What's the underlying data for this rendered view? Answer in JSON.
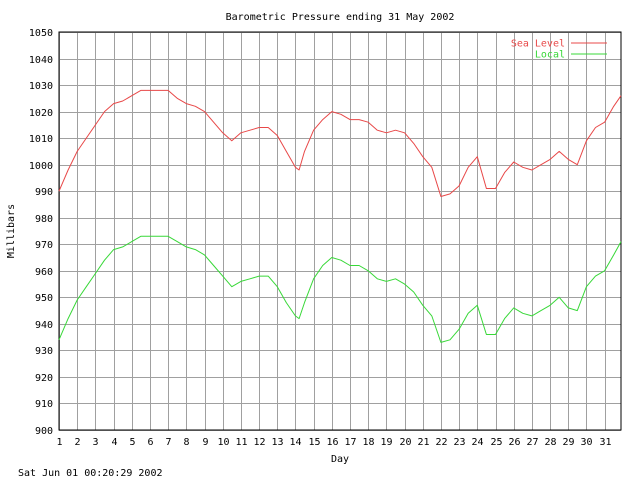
{
  "chart_data": {
    "type": "line",
    "title": "Barometric Pressure ending 31 May 2002",
    "xlabel": "Day",
    "ylabel": "Millibars",
    "footer": "Sat Jun 01 00:20:29 2002",
    "xlim": [
      1,
      31.9
    ],
    "ylim": [
      900,
      1050
    ],
    "y_ticks": [
      900,
      910,
      920,
      930,
      940,
      950,
      960,
      970,
      980,
      990,
      1000,
      1010,
      1020,
      1030,
      1040,
      1050
    ],
    "x_ticks": [
      1,
      2,
      3,
      4,
      5,
      6,
      7,
      8,
      9,
      10,
      11,
      12,
      13,
      14,
      15,
      16,
      17,
      18,
      19,
      20,
      21,
      22,
      23,
      24,
      25,
      26,
      27,
      28,
      29,
      30,
      31
    ],
    "grid": true,
    "legend_position": "top-right",
    "series": [
      {
        "name": "Sea Level",
        "color": "#e84848",
        "x": [
          1,
          1.5,
          2,
          2.5,
          3,
          3.5,
          4,
          4.5,
          5,
          5.5,
          6,
          6.5,
          7,
          7.5,
          8,
          8.5,
          9,
          9.5,
          10,
          10.5,
          11,
          11.5,
          12,
          12.5,
          13,
          13.5,
          14,
          14.2,
          14.5,
          15,
          15.5,
          16,
          16.5,
          17,
          17.5,
          18,
          18.5,
          19,
          19.5,
          20,
          20.5,
          21,
          21.5,
          22,
          22.5,
          23,
          23.5,
          24,
          24.5,
          25,
          25.5,
          26,
          26.5,
          27,
          27.5,
          28,
          28.5,
          29,
          29.5,
          30,
          30.5,
          31,
          31.5,
          31.9
        ],
        "values": [
          990,
          998,
          1005,
          1010,
          1015,
          1020,
          1023,
          1024,
          1026,
          1028,
          1028,
          1028,
          1028,
          1025,
          1023,
          1022,
          1020,
          1016,
          1012,
          1009,
          1012,
          1013,
          1014,
          1014,
          1011,
          1005,
          999,
          998,
          1005,
          1013,
          1017,
          1020,
          1019,
          1017,
          1017,
          1016,
          1013,
          1012,
          1013,
          1012,
          1008,
          1003,
          999,
          988,
          989,
          992,
          999,
          1003,
          991,
          991,
          997,
          1001,
          999,
          998,
          1000,
          1002,
          1005,
          1002,
          1000,
          1009,
          1014,
          1016,
          1022,
          1026
        ]
      },
      {
        "name": "Local",
        "color": "#38d838",
        "x": [
          1,
          1.5,
          2,
          2.5,
          3,
          3.5,
          4,
          4.5,
          5,
          5.5,
          6,
          6.5,
          7,
          7.5,
          8,
          8.5,
          9,
          9.5,
          10,
          10.5,
          11,
          11.5,
          12,
          12.5,
          13,
          13.5,
          14,
          14.2,
          14.5,
          15,
          15.5,
          16,
          16.5,
          17,
          17.5,
          18,
          18.5,
          19,
          19.5,
          20,
          20.5,
          21,
          21.5,
          22,
          22.5,
          23,
          23.5,
          24,
          24.5,
          25,
          25.5,
          26,
          26.5,
          27,
          27.5,
          28,
          28.5,
          29,
          29.5,
          30,
          30.5,
          31,
          31.5,
          31.9
        ],
        "values": [
          934,
          942,
          949,
          954,
          959,
          964,
          968,
          969,
          971,
          973,
          973,
          973,
          973,
          971,
          969,
          968,
          966,
          962,
          958,
          954,
          956,
          957,
          958,
          958,
          954,
          948,
          943,
          942,
          948,
          957,
          962,
          965,
          964,
          962,
          962,
          960,
          957,
          956,
          957,
          955,
          952,
          947,
          943,
          933,
          934,
          938,
          944,
          947,
          936,
          936,
          942,
          946,
          944,
          943,
          945,
          947,
          950,
          946,
          945,
          954,
          958,
          960,
          966,
          971
        ]
      }
    ]
  }
}
